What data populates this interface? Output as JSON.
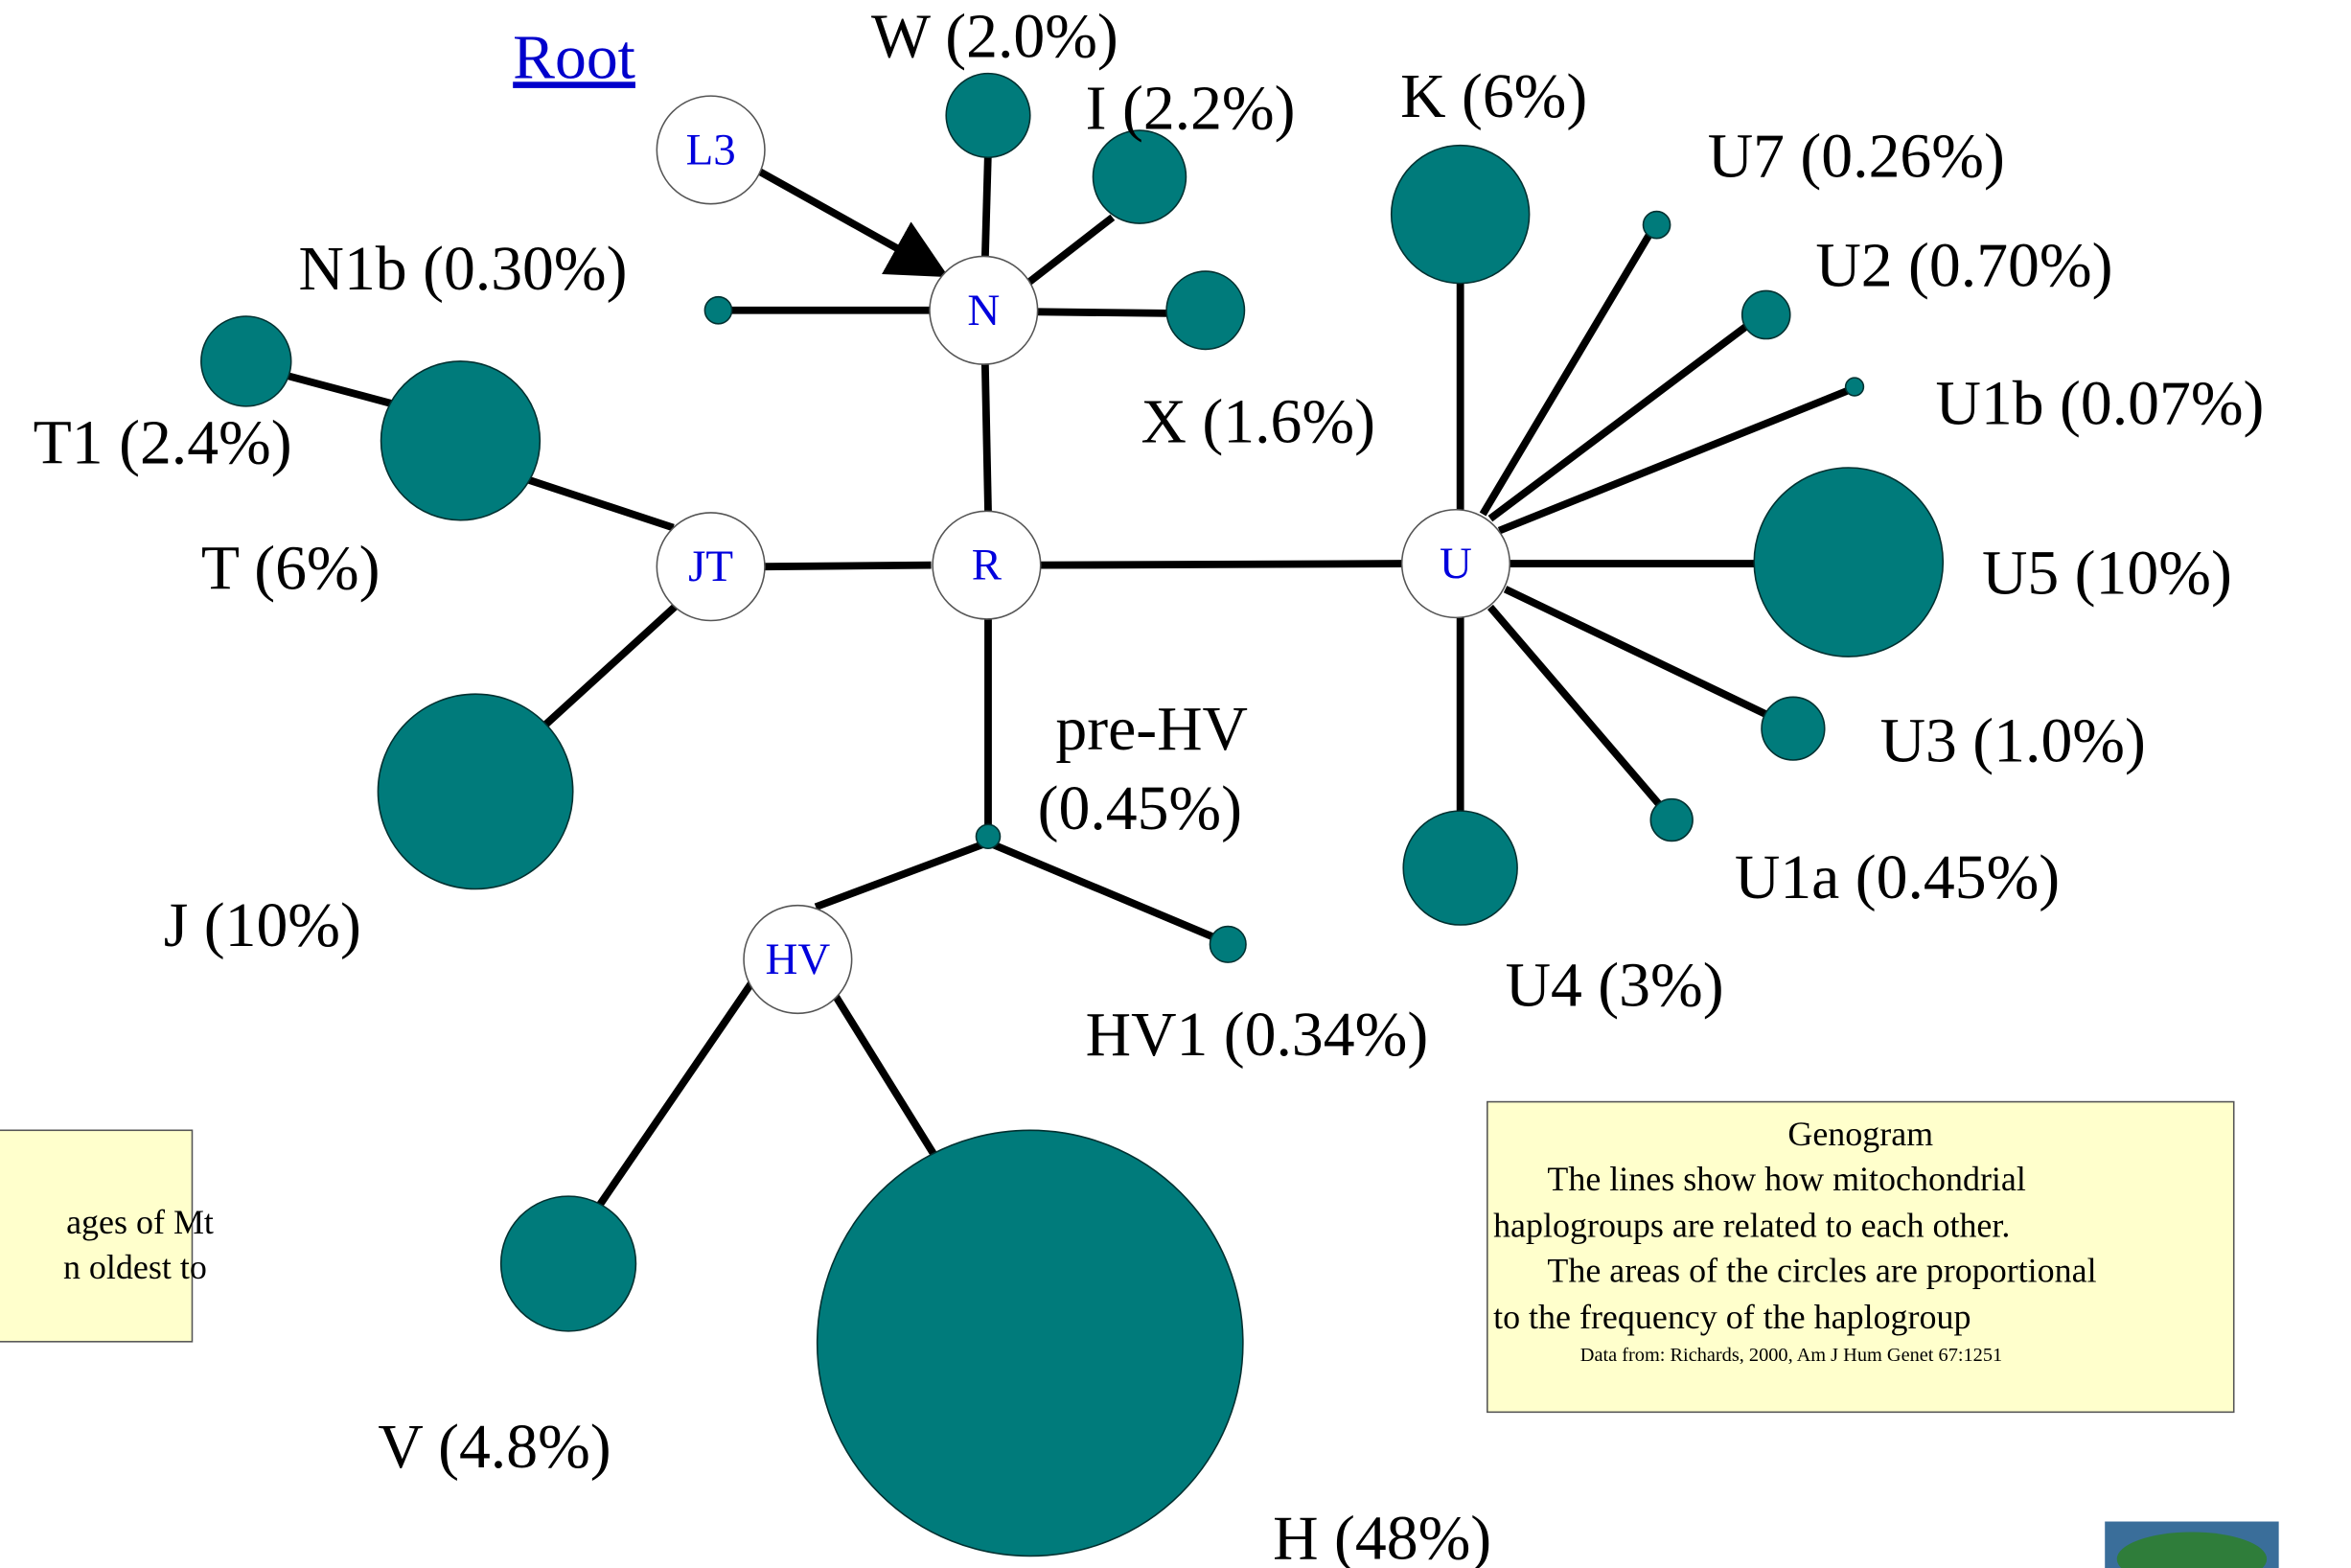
{
  "root": "Root",
  "nodes": [
    "L3",
    "N",
    "R",
    "JT",
    "U",
    "HV"
  ],
  "haplogroups": [
    "W (2.0%)",
    "I (2.2%)",
    "K (6%)",
    "U7 (0.26%)",
    "N1b (0.30%)",
    "U2 (0.70%)",
    "U1b (0.07%)",
    "T1 (2.4%)",
    "X (1.6%)",
    "T (6%)",
    "U5 (10%)",
    "pre-HV",
    "(0.45%)",
    "U3 (1.0%)",
    "U1a (0.45%)",
    "J (10%)",
    "U4 (3%)",
    "HV1 (0.34%)",
    "V (4.8%)",
    "H (48%)"
  ],
  "side_note": [
    "ages of Mt",
    "n oldest to"
  ],
  "legend": {
    "title": "Genogram",
    "lines": [
      "The lines show how  mitochondrial",
      "haplogroups are related to each other.",
      "The areas of the circles are proportional",
      "to the frequency of the haplogroup"
    ],
    "source": "Data from: Richards, 2000, Am J Hum Genet 67:1251"
  }
}
